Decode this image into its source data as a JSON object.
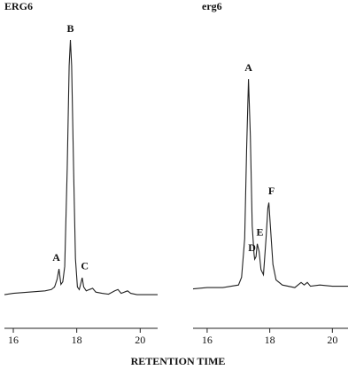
{
  "chart_data": [
    {
      "type": "line",
      "title": "ERG6",
      "x": [
        15.72,
        16.0,
        16.5,
        17.0,
        17.2,
        17.3,
        17.38,
        17.44,
        17.5,
        17.56,
        17.62,
        17.7,
        17.76,
        17.8,
        17.84,
        17.9,
        17.96,
        18.02,
        18.08,
        18.12,
        18.17,
        18.22,
        18.3,
        18.4,
        18.5,
        18.6,
        18.8,
        19.0,
        19.2,
        19.3,
        19.4,
        19.6,
        19.7,
        19.9,
        20.2,
        20.55
      ],
      "values": [
        1,
        1.5,
        2,
        2.5,
        3,
        4,
        7,
        11,
        5,
        6,
        12,
        50,
        90,
        100,
        90,
        50,
        15,
        4,
        3,
        5,
        7.6,
        4,
        2.5,
        3,
        3.5,
        2,
        1.5,
        1.2,
        2.5,
        3,
        1.5,
        2.5,
        1.5,
        1,
        1,
        1
      ],
      "color": "#222222",
      "xlim": [
        15.72,
        20.55
      ],
      "ylim": [
        0,
        100
      ],
      "xticks": [
        16,
        18,
        20
      ],
      "annotations": [
        {
          "text": "A",
          "x": 17.44,
          "y": 11
        },
        {
          "text": "B",
          "x": 17.8,
          "y": 100
        },
        {
          "text": "C",
          "x": 18.17,
          "y": 7.6
        }
      ]
    },
    {
      "type": "line",
      "title": "erg6",
      "x": [
        15.55,
        16.0,
        16.5,
        17.0,
        17.1,
        17.2,
        17.26,
        17.32,
        17.38,
        17.44,
        17.5,
        17.52,
        17.56,
        17.6,
        17.66,
        17.72,
        17.8,
        17.88,
        17.94,
        17.97,
        18.02,
        18.1,
        18.2,
        18.4,
        18.8,
        19.0,
        19.1,
        19.2,
        19.3,
        19.6,
        20.0,
        20.5
      ],
      "values": [
        0.5,
        1,
        1,
        2,
        5,
        20,
        55,
        82,
        60,
        25,
        14,
        12,
        13,
        18,
        15,
        8,
        6,
        20,
        32,
        34,
        25,
        10,
        4,
        2,
        1,
        3,
        2,
        3,
        1.5,
        2,
        1.5,
        1.5
      ],
      "color": "#222222",
      "xlim": [
        15.55,
        20.5
      ],
      "ylim": [
        0,
        100
      ],
      "xticks": [
        16,
        18,
        20
      ],
      "annotations": [
        {
          "text": "A",
          "x": 17.32,
          "y": 82
        },
        {
          "text": "D",
          "x": 17.52,
          "y": 12
        },
        {
          "text": "E",
          "x": 17.6,
          "y": 18
        },
        {
          "text": "F",
          "x": 17.97,
          "y": 34
        }
      ]
    }
  ],
  "x_axis_label": "RETENTION TIME"
}
